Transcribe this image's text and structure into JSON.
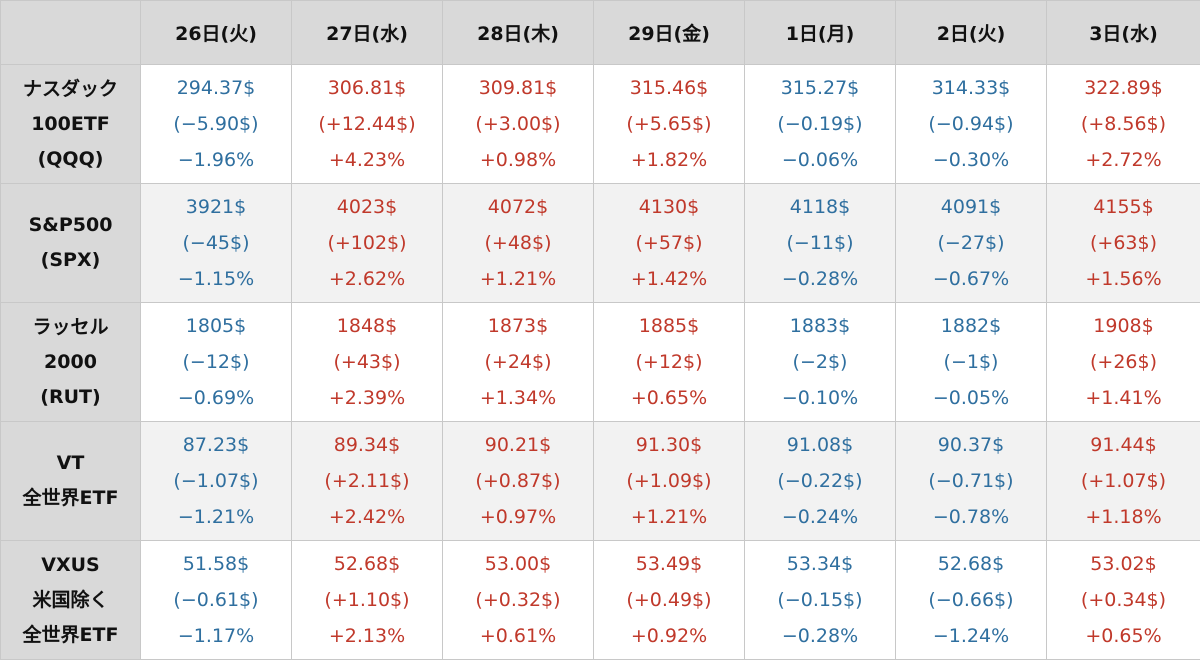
{
  "headers": [
    "",
    "26日(火)",
    "27日(水)",
    "28日(木)",
    "29日(金)",
    "1日(月)",
    "2日(火)",
    "3日(水)"
  ],
  "colors": {
    "up": "#c0392b",
    "down": "#2f6f9f",
    "header_bg": "#d9d9d9"
  },
  "rows": [
    {
      "label": [
        "ナスダック",
        "100ETF",
        "(QQQ)"
      ],
      "cells": [
        {
          "price": "294.37$",
          "change": "(−5.90$)",
          "percent": "−1.96%",
          "direction": "down"
        },
        {
          "price": "306.81$",
          "change": "(+12.44$)",
          "percent": "+4.23%",
          "direction": "up"
        },
        {
          "price": "309.81$",
          "change": "(+3.00$)",
          "percent": "+0.98%",
          "direction": "up"
        },
        {
          "price": "315.46$",
          "change": "(+5.65$)",
          "percent": "+1.82%",
          "direction": "up"
        },
        {
          "price": "315.27$",
          "change": "(−0.19$)",
          "percent": "−0.06%",
          "direction": "down"
        },
        {
          "price": "314.33$",
          "change": "(−0.94$)",
          "percent": "−0.30%",
          "direction": "down"
        },
        {
          "price": "322.89$",
          "change": "(+8.56$)",
          "percent": "+2.72%",
          "direction": "up"
        }
      ]
    },
    {
      "label": [
        "S&P500",
        "(SPX)"
      ],
      "cells": [
        {
          "price": "3921$",
          "change": "(−45$)",
          "percent": "−1.15%",
          "direction": "down"
        },
        {
          "price": "4023$",
          "change": "(+102$)",
          "percent": "+2.62%",
          "direction": "up"
        },
        {
          "price": "4072$",
          "change": "(+48$)",
          "percent": "+1.21%",
          "direction": "up"
        },
        {
          "price": "4130$",
          "change": "(+57$)",
          "percent": "+1.42%",
          "direction": "up"
        },
        {
          "price": "4118$",
          "change": "(−11$)",
          "percent": "−0.28%",
          "direction": "down"
        },
        {
          "price": "4091$",
          "change": "(−27$)",
          "percent": "−0.67%",
          "direction": "down"
        },
        {
          "price": "4155$",
          "change": "(+63$)",
          "percent": "+1.56%",
          "direction": "up"
        }
      ]
    },
    {
      "label": [
        "ラッセル",
        "2000",
        "(RUT)"
      ],
      "cells": [
        {
          "price": "1805$",
          "change": "(−12$)",
          "percent": "−0.69%",
          "direction": "down"
        },
        {
          "price": "1848$",
          "change": "(+43$)",
          "percent": "+2.39%",
          "direction": "up"
        },
        {
          "price": "1873$",
          "change": "(+24$)",
          "percent": "+1.34%",
          "direction": "up"
        },
        {
          "price": "1885$",
          "change": "(+12$)",
          "percent": "+0.65%",
          "direction": "up"
        },
        {
          "price": "1883$",
          "change": "(−2$)",
          "percent": "−0.10%",
          "direction": "down"
        },
        {
          "price": "1882$",
          "change": "(−1$)",
          "percent": "−0.05%",
          "direction": "down"
        },
        {
          "price": "1908$",
          "change": "(+26$)",
          "percent": "+1.41%",
          "direction": "up"
        }
      ]
    },
    {
      "label": [
        "VT",
        "全世界ETF"
      ],
      "cells": [
        {
          "price": "87.23$",
          "change": "(−1.07$)",
          "percent": "−1.21%",
          "direction": "down"
        },
        {
          "price": "89.34$",
          "change": "(+2.11$)",
          "percent": "+2.42%",
          "direction": "up"
        },
        {
          "price": "90.21$",
          "change": "(+0.87$)",
          "percent": "+0.97%",
          "direction": "up"
        },
        {
          "price": "91.30$",
          "change": "(+1.09$)",
          "percent": "+1.21%",
          "direction": "up"
        },
        {
          "price": "91.08$",
          "change": "(−0.22$)",
          "percent": "−0.24%",
          "direction": "down"
        },
        {
          "price": "90.37$",
          "change": "(−0.71$)",
          "percent": "−0.78%",
          "direction": "down"
        },
        {
          "price": "91.44$",
          "change": "(+1.07$)",
          "percent": "+1.18%",
          "direction": "up"
        }
      ]
    },
    {
      "label": [
        "VXUS",
        "米国除く",
        "全世界ETF"
      ],
      "cells": [
        {
          "price": "51.58$",
          "change": "(−0.61$)",
          "percent": "−1.17%",
          "direction": "down"
        },
        {
          "price": "52.68$",
          "change": "(+1.10$)",
          "percent": "+2.13%",
          "direction": "up"
        },
        {
          "price": "53.00$",
          "change": "(+0.32$)",
          "percent": "+0.61%",
          "direction": "up"
        },
        {
          "price": "53.49$",
          "change": "(+0.49$)",
          "percent": "+0.92%",
          "direction": "up"
        },
        {
          "price": "53.34$",
          "change": "(−0.15$)",
          "percent": "−0.28%",
          "direction": "down"
        },
        {
          "price": "52.68$",
          "change": "(−0.66$)",
          "percent": "−1.24%",
          "direction": "down"
        },
        {
          "price": "53.02$",
          "change": "(+0.34$)",
          "percent": "+0.65%",
          "direction": "up"
        }
      ]
    }
  ]
}
